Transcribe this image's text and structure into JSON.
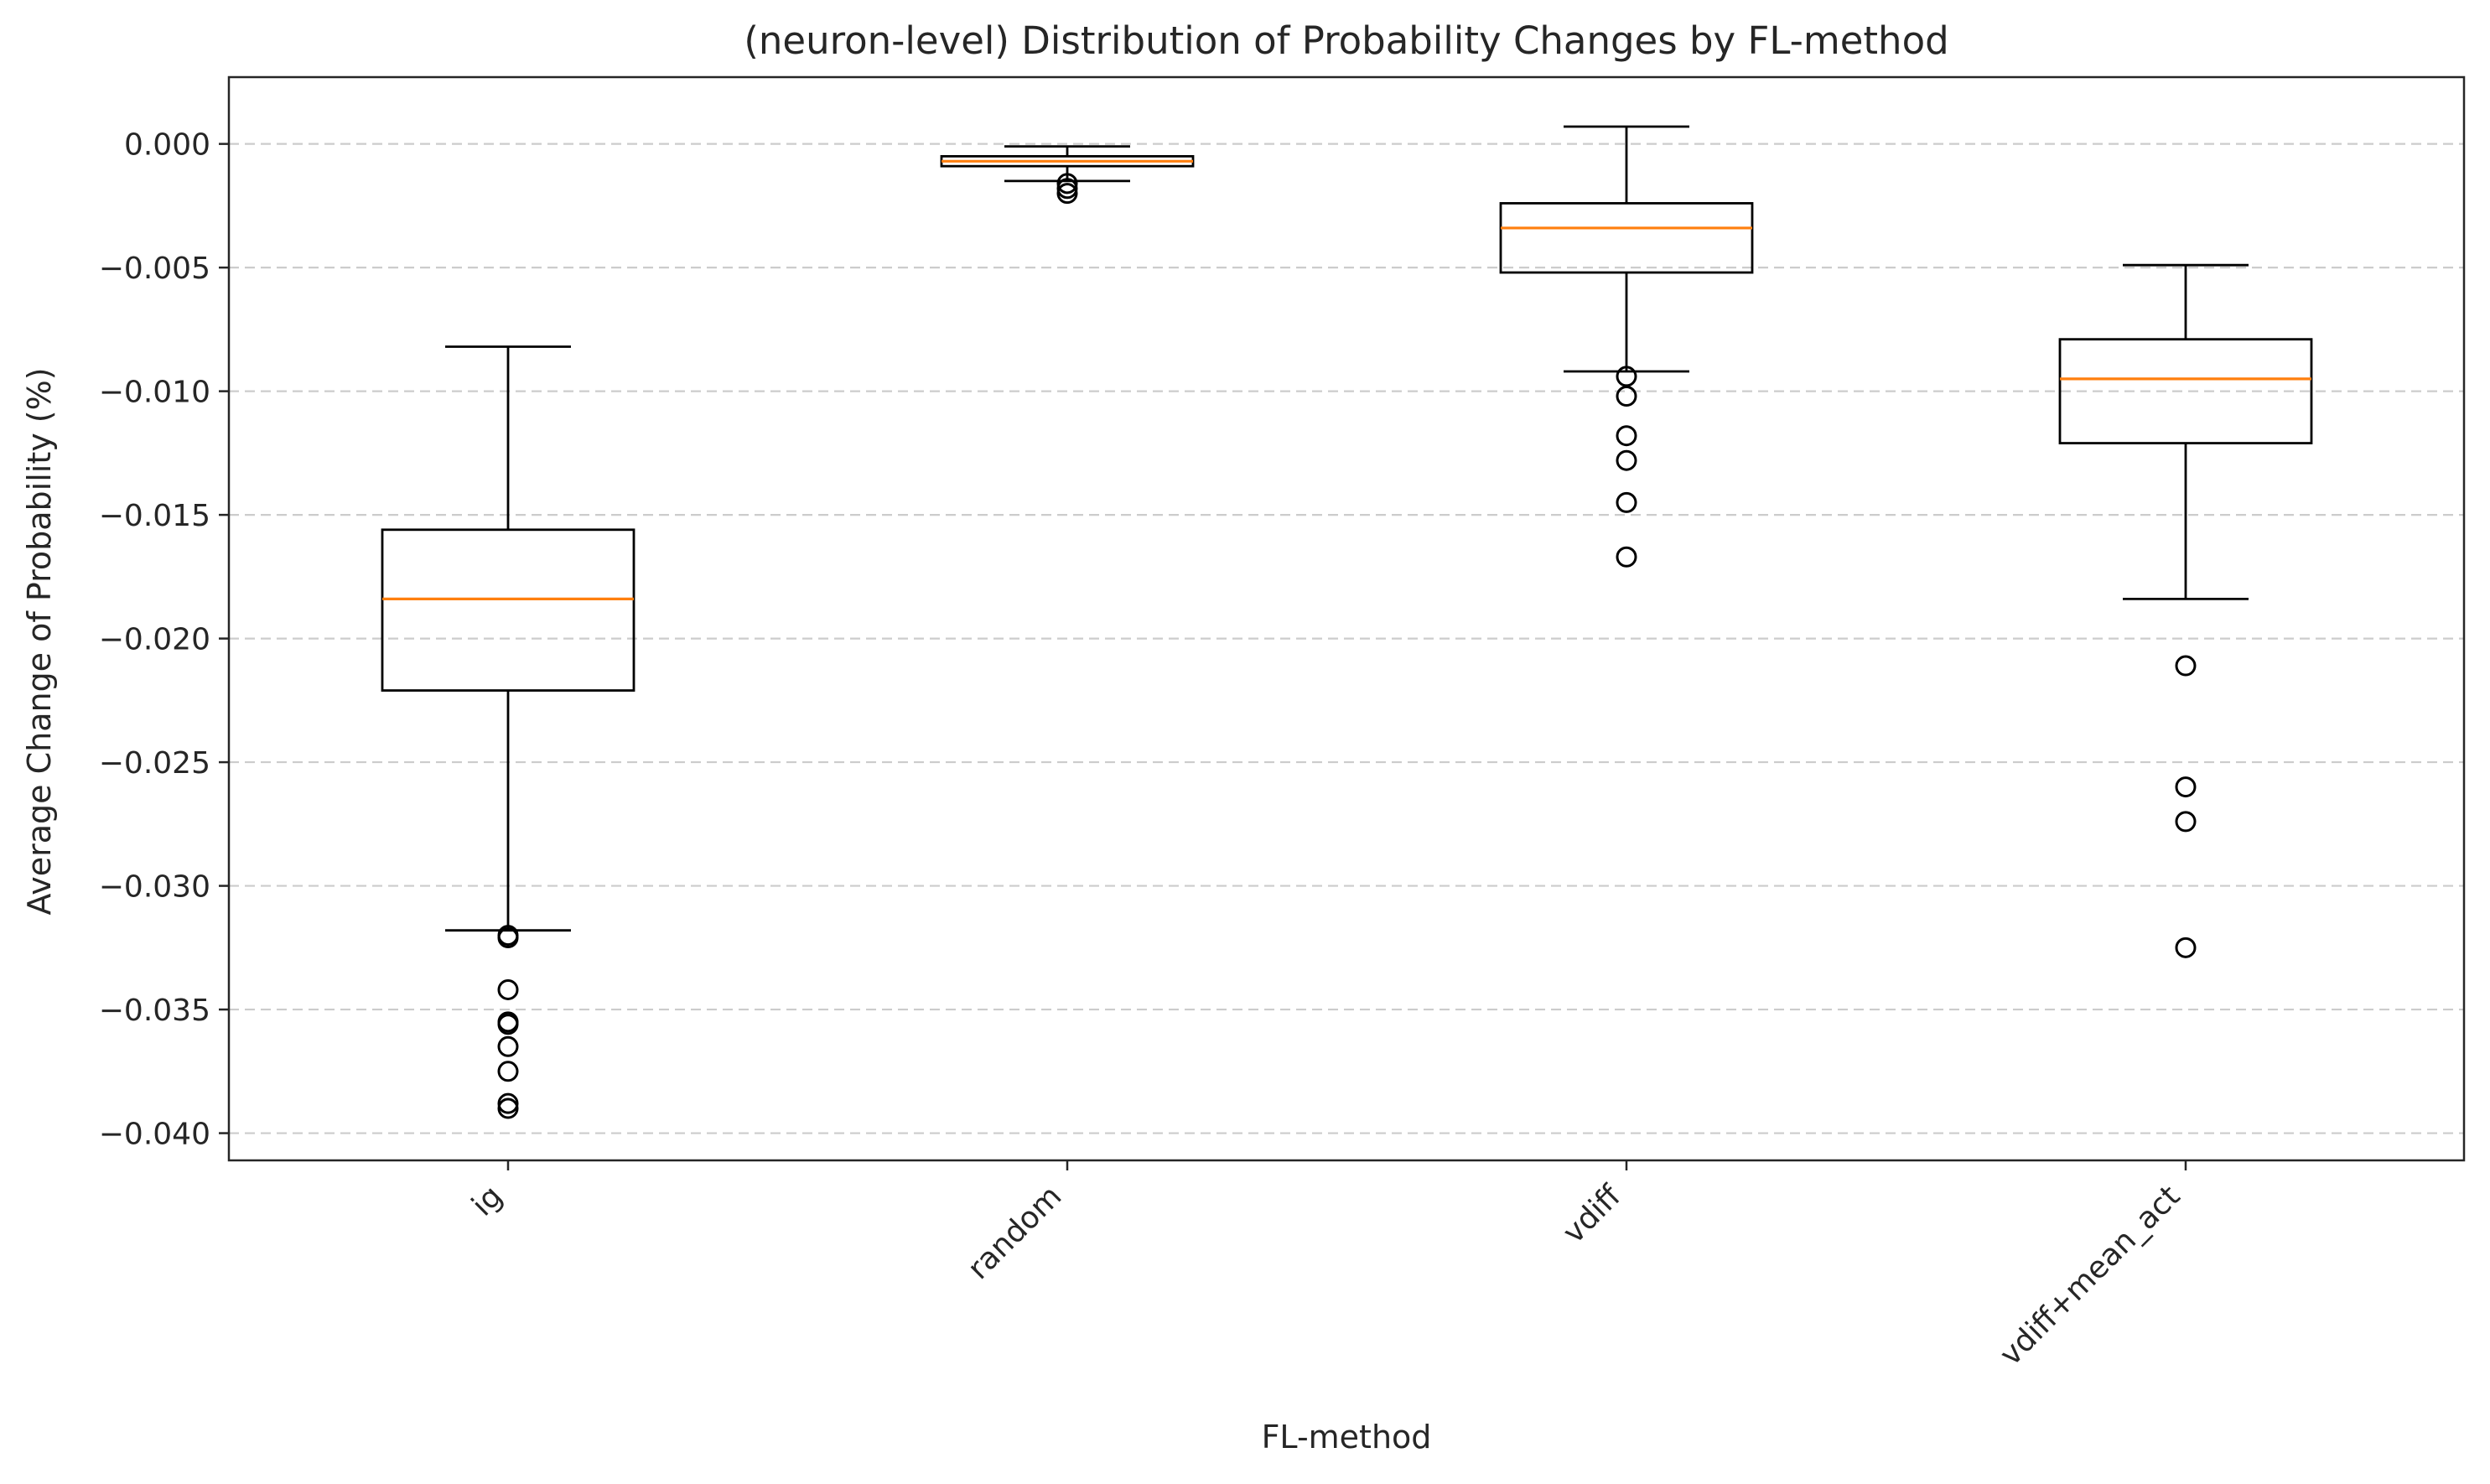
{
  "chart_data": {
    "type": "box",
    "title": "(neuron-level) Distribution of Probability Changes by FL-method",
    "xlabel": "FL-method",
    "ylabel": "Average Change of Probability (%)",
    "categories": [
      "ig",
      "random",
      "vdiff",
      "vdiff+mean_act"
    ],
    "ylim": [
      -0.0411,
      0.0027
    ],
    "yticks": [
      0.0,
      -0.005,
      -0.01,
      -0.015,
      -0.02,
      -0.025,
      -0.03,
      -0.035,
      -0.04
    ],
    "ytick_labels": [
      "0.000",
      "−0.005",
      "−0.010",
      "−0.015",
      "−0.020",
      "−0.025",
      "−0.030",
      "−0.035",
      "−0.040"
    ],
    "grid": "y-dashed",
    "colors": {
      "box": "#000000",
      "median": "#ff7f0e",
      "grid": "#cccccc"
    },
    "boxes": [
      {
        "name": "ig",
        "whisker_high": -0.0082,
        "q3": -0.0156,
        "median": -0.0184,
        "q1": -0.0221,
        "whisker_low": -0.0318,
        "outliers": [
          -0.032,
          -0.0321,
          -0.0342,
          -0.0355,
          -0.0356,
          -0.0365,
          -0.0375,
          -0.0388,
          -0.039
        ]
      },
      {
        "name": "random",
        "whisker_high": -0.0001,
        "q3": -0.0005,
        "median": -0.0007,
        "q1": -0.0009,
        "whisker_low": -0.0015,
        "outliers": [
          -0.0016,
          -0.0018,
          -0.002
        ]
      },
      {
        "name": "vdiff",
        "whisker_high": 0.0007,
        "q3": -0.0024,
        "median": -0.0034,
        "q1": -0.0052,
        "whisker_low": -0.0092,
        "outliers": [
          -0.0094,
          -0.0102,
          -0.0118,
          -0.0128,
          -0.0145,
          -0.0167
        ]
      },
      {
        "name": "vdiff+mean_act",
        "whisker_high": -0.0049,
        "q3": -0.0079,
        "median": -0.0095,
        "q1": -0.0121,
        "whisker_low": -0.0184,
        "outliers": [
          -0.0211,
          -0.026,
          -0.0274,
          -0.0325
        ]
      }
    ]
  }
}
